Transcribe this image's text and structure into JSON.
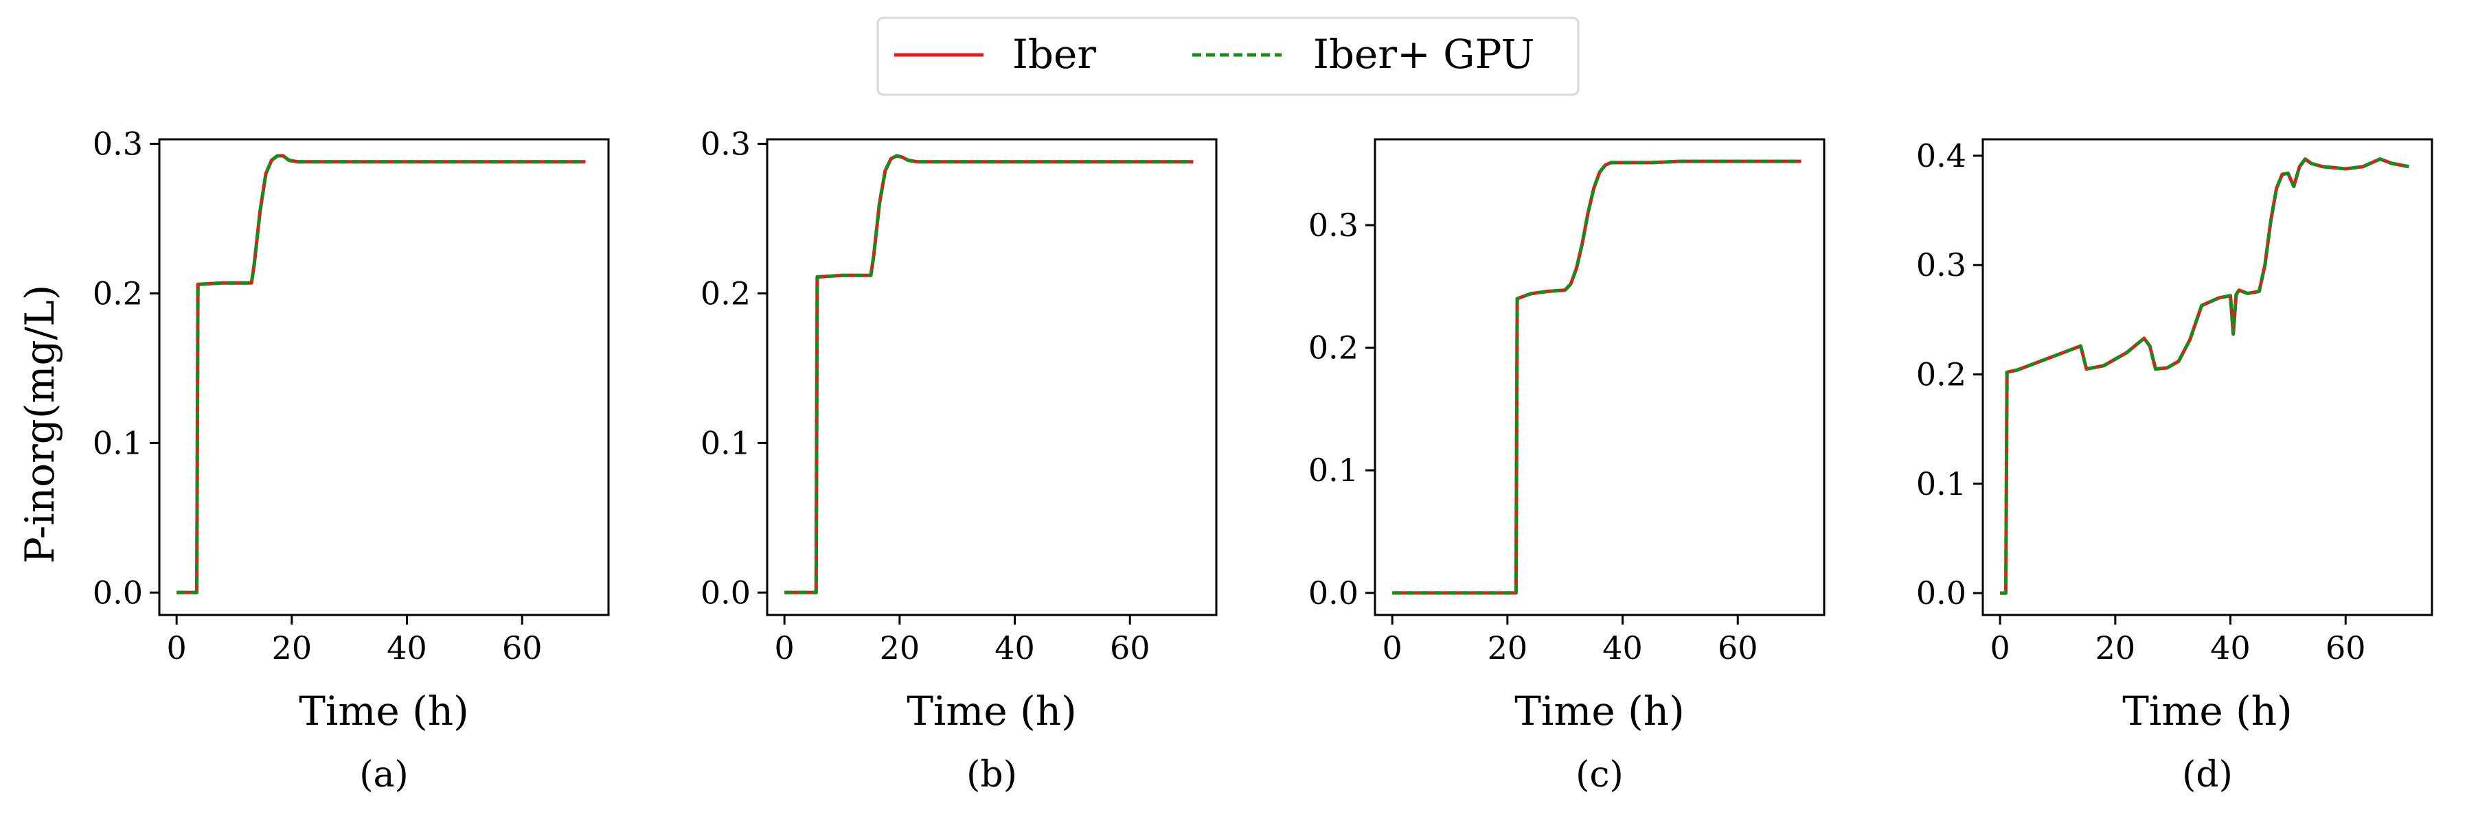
{
  "figure": {
    "legend": {
      "placement": "top-center",
      "entries": [
        {
          "label": "Iber",
          "color": "#e41a1c",
          "style": "solid"
        },
        {
          "label": "Iber+ GPU",
          "color": "#1a8a1a",
          "style": "dashed"
        }
      ]
    },
    "ylabel": "P-inorg(mg/L)"
  },
  "chart_data": [
    {
      "type": "line",
      "caption": "(a)",
      "xlabel": "Time (h)",
      "ylabel": "P-inorg(mg/L)",
      "xlim": [
        -3,
        75
      ],
      "ylim": [
        -0.015,
        0.303
      ],
      "xticks": [
        0,
        20,
        40,
        60
      ],
      "yticks": [
        0.0,
        0.1,
        0.2,
        0.3
      ],
      "ytick_labels": [
        "0.0",
        "0.1",
        "0.2",
        "0.3"
      ],
      "series": [
        {
          "name": "Iber",
          "x": [
            0,
            3.5,
            3.7,
            8,
            13,
            13.5,
            14.5,
            15.5,
            16.5,
            17.5,
            18.5,
            19.5,
            21,
            23,
            30,
            40,
            50,
            60,
            71
          ],
          "y": [
            0,
            0,
            0.206,
            0.207,
            0.207,
            0.22,
            0.255,
            0.28,
            0.289,
            0.292,
            0.292,
            0.289,
            0.288,
            0.288,
            0.288,
            0.288,
            0.288,
            0.288,
            0.288
          ]
        },
        {
          "name": "Iber+ GPU",
          "x": [
            0,
            3.5,
            3.7,
            8,
            13,
            13.5,
            14.5,
            15.5,
            16.5,
            17.5,
            18.5,
            19.5,
            21,
            23,
            30,
            40,
            50,
            60,
            71
          ],
          "y": [
            0,
            0,
            0.206,
            0.207,
            0.207,
            0.22,
            0.255,
            0.28,
            0.289,
            0.292,
            0.292,
            0.289,
            0.288,
            0.288,
            0.288,
            0.288,
            0.288,
            0.288,
            0.288
          ]
        }
      ]
    },
    {
      "type": "line",
      "caption": "(b)",
      "xlabel": "Time (h)",
      "ylabel": "",
      "xlim": [
        -3,
        75
      ],
      "ylim": [
        -0.015,
        0.303
      ],
      "xticks": [
        0,
        20,
        40,
        60
      ],
      "yticks": [
        0.0,
        0.1,
        0.2,
        0.3
      ],
      "ytick_labels": [
        "0.0",
        "0.1",
        "0.2",
        "0.3"
      ],
      "series": [
        {
          "name": "Iber",
          "x": [
            0,
            5.5,
            5.7,
            10,
            15,
            15.5,
            16.5,
            17.5,
            18.5,
            19.5,
            20.5,
            21.5,
            23,
            25,
            30,
            40,
            50,
            60,
            71
          ],
          "y": [
            0,
            0,
            0.211,
            0.212,
            0.212,
            0.225,
            0.26,
            0.282,
            0.29,
            0.292,
            0.291,
            0.289,
            0.288,
            0.288,
            0.288,
            0.288,
            0.288,
            0.288,
            0.288
          ]
        },
        {
          "name": "Iber+ GPU",
          "x": [
            0,
            5.5,
            5.7,
            10,
            15,
            15.5,
            16.5,
            17.5,
            18.5,
            19.5,
            20.5,
            21.5,
            23,
            25,
            30,
            40,
            50,
            60,
            71
          ],
          "y": [
            0,
            0,
            0.211,
            0.212,
            0.212,
            0.225,
            0.26,
            0.282,
            0.29,
            0.292,
            0.291,
            0.289,
            0.288,
            0.288,
            0.288,
            0.288,
            0.288,
            0.288,
            0.288
          ]
        }
      ]
    },
    {
      "type": "line",
      "caption": "(c)",
      "xlabel": "Time (h)",
      "ylabel": "",
      "xlim": [
        -3,
        75
      ],
      "ylim": [
        -0.018,
        0.37
      ],
      "xticks": [
        0,
        20,
        40,
        60
      ],
      "yticks": [
        0.0,
        0.1,
        0.2,
        0.3
      ],
      "ytick_labels": [
        "0.0",
        "0.1",
        "0.2",
        "0.3"
      ],
      "series": [
        {
          "name": "Iber",
          "x": [
            0,
            21.5,
            21.7,
            24,
            27,
            30,
            31,
            32,
            33,
            34,
            35,
            36,
            37,
            38,
            40,
            45,
            50,
            60,
            71
          ],
          "y": [
            0,
            0,
            0.24,
            0.244,
            0.246,
            0.247,
            0.252,
            0.265,
            0.285,
            0.31,
            0.33,
            0.343,
            0.349,
            0.351,
            0.351,
            0.351,
            0.352,
            0.352,
            0.352
          ]
        },
        {
          "name": "Iber+ GPU",
          "x": [
            0,
            21.5,
            21.7,
            24,
            27,
            30,
            31,
            32,
            33,
            34,
            35,
            36,
            37,
            38,
            40,
            45,
            50,
            60,
            71
          ],
          "y": [
            0,
            0,
            0.24,
            0.244,
            0.246,
            0.247,
            0.252,
            0.265,
            0.285,
            0.31,
            0.33,
            0.343,
            0.349,
            0.351,
            0.351,
            0.351,
            0.352,
            0.352,
            0.352
          ]
        }
      ]
    },
    {
      "type": "line",
      "caption": "(d)",
      "xlabel": "Time (h)",
      "ylabel": "",
      "xlim": [
        -3,
        75
      ],
      "ylim": [
        -0.02,
        0.415
      ],
      "xticks": [
        0,
        20,
        40,
        60
      ],
      "yticks": [
        0.0,
        0.1,
        0.2,
        0.3,
        0.4
      ],
      "ytick_labels": [
        "0.0",
        "0.1",
        "0.2",
        "0.3",
        "0.4"
      ],
      "series": [
        {
          "name": "Iber",
          "x": [
            0,
            1,
            1.2,
            3,
            14,
            15,
            18,
            22,
            25,
            26,
            27,
            29,
            31,
            33,
            35,
            38,
            40,
            40.5,
            41,
            41.5,
            43,
            45,
            46,
            47,
            48,
            49,
            50,
            51,
            52,
            53,
            54,
            56,
            60,
            63,
            66,
            68,
            71
          ],
          "y": [
            0,
            0,
            0.202,
            0.204,
            0.226,
            0.205,
            0.208,
            0.22,
            0.233,
            0.226,
            0.205,
            0.206,
            0.212,
            0.232,
            0.263,
            0.27,
            0.272,
            0.237,
            0.273,
            0.277,
            0.274,
            0.276,
            0.3,
            0.34,
            0.37,
            0.383,
            0.384,
            0.372,
            0.39,
            0.397,
            0.393,
            0.39,
            0.388,
            0.39,
            0.397,
            0.393,
            0.39
          ]
        },
        {
          "name": "Iber+ GPU",
          "x": [
            0,
            1,
            1.2,
            3,
            14,
            15,
            18,
            22,
            25,
            26,
            27,
            29,
            31,
            33,
            35,
            38,
            40,
            40.5,
            41,
            41.5,
            43,
            45,
            46,
            47,
            48,
            49,
            50,
            51,
            52,
            53,
            54,
            56,
            60,
            63,
            66,
            68,
            71
          ],
          "y": [
            0,
            0,
            0.202,
            0.204,
            0.226,
            0.205,
            0.208,
            0.22,
            0.233,
            0.226,
            0.205,
            0.206,
            0.212,
            0.232,
            0.263,
            0.27,
            0.272,
            0.237,
            0.273,
            0.277,
            0.274,
            0.276,
            0.3,
            0.34,
            0.37,
            0.383,
            0.384,
            0.372,
            0.39,
            0.397,
            0.393,
            0.39,
            0.388,
            0.39,
            0.397,
            0.393,
            0.39
          ]
        }
      ]
    }
  ]
}
